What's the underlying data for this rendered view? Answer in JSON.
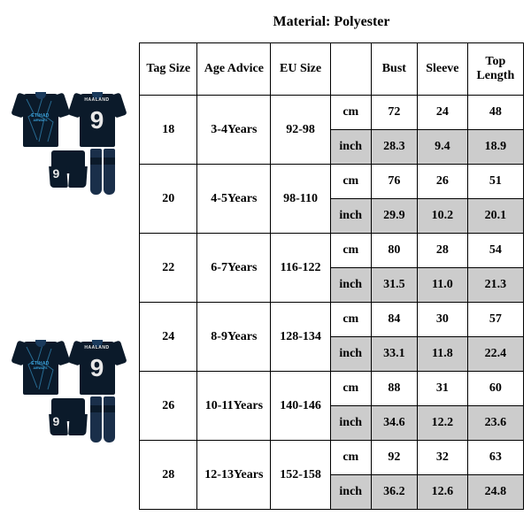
{
  "material": {
    "label": "Material:",
    "value": "Polyester"
  },
  "product": {
    "player_name": "HAALAND",
    "number": "9",
    "sponsor_line1": "ETIHAD",
    "sponsor_line2": "AIRWAYS",
    "base_color": "#0b1a2a",
    "accent_color": "#3aa0d8",
    "text_color": "#e8e8e8"
  },
  "table": {
    "headers": {
      "tag": "Tag Size",
      "age": "Age Advice",
      "eu": "EU Size",
      "unit_blank": "",
      "bust": "Bust",
      "sleeve": "Sleeve",
      "top": "Top Length"
    },
    "unit_cm": "cm",
    "unit_inch": "inch",
    "rows": [
      {
        "tag": "18",
        "age": "3-4Years",
        "eu": "92-98",
        "cm": {
          "bust": "72",
          "sleeve": "24",
          "top": "48"
        },
        "inch": {
          "bust": "28.3",
          "sleeve": "9.4",
          "top": "18.9"
        }
      },
      {
        "tag": "20",
        "age": "4-5Years",
        "eu": "98-110",
        "cm": {
          "bust": "76",
          "sleeve": "26",
          "top": "51"
        },
        "inch": {
          "bust": "29.9",
          "sleeve": "10.2",
          "top": "20.1"
        }
      },
      {
        "tag": "22",
        "age": "6-7Years",
        "eu": "116-122",
        "cm": {
          "bust": "80",
          "sleeve": "28",
          "top": "54"
        },
        "inch": {
          "bust": "31.5",
          "sleeve": "11.0",
          "top": "21.3"
        }
      },
      {
        "tag": "24",
        "age": "8-9Years",
        "eu": "128-134",
        "cm": {
          "bust": "84",
          "sleeve": "30",
          "top": "57"
        },
        "inch": {
          "bust": "33.1",
          "sleeve": "11.8",
          "top": "22.4"
        }
      },
      {
        "tag": "26",
        "age": "10-11Years",
        "eu": "140-146",
        "cm": {
          "bust": "88",
          "sleeve": "31",
          "top": "60"
        },
        "inch": {
          "bust": "34.6",
          "sleeve": "12.2",
          "top": "23.6"
        }
      },
      {
        "tag": "28",
        "age": "12-13Years",
        "eu": "152-158",
        "cm": {
          "bust": "92",
          "sleeve": "32",
          "top": "63"
        },
        "inch": {
          "bust": "36.2",
          "sleeve": "12.6",
          "top": "24.8"
        }
      }
    ],
    "styles": {
      "border_color": "#000000",
      "shade_color": "#cccccc",
      "font_family": "Times New Roman",
      "header_fontsize_pt": 11,
      "cell_fontsize_pt": 11
    }
  }
}
